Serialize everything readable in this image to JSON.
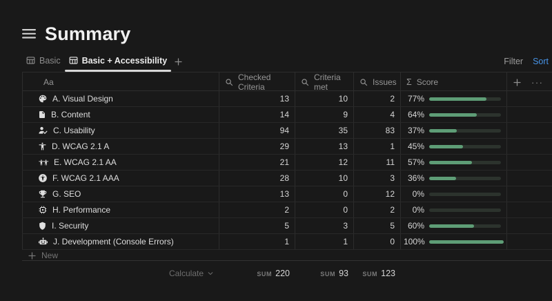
{
  "page": {
    "title": "Summary"
  },
  "toolbar": {
    "filter_label": "Filter",
    "sort_label": "Sort",
    "sort_color": "#4793e6"
  },
  "tabs": [
    {
      "label": "Basic",
      "active": false,
      "icon": "table-view"
    },
    {
      "label": "Basic + Accessibility",
      "active": true,
      "icon": "table-view"
    }
  ],
  "table": {
    "columns": [
      {
        "key": "name",
        "label": "Aa",
        "icon": "aa"
      },
      {
        "key": "checked",
        "label": "Checked Criteria",
        "icon": "magnifier"
      },
      {
        "key": "met",
        "label": "Criteria met",
        "icon": "magnifier"
      },
      {
        "key": "issues",
        "label": "Issues",
        "icon": "magnifier"
      },
      {
        "key": "score",
        "label": "Score",
        "icon": "sigma"
      }
    ],
    "rows": [
      {
        "icon": "palette",
        "name": "A. Visual Design",
        "checked": "13",
        "met": "10",
        "issues": "2",
        "score": "77%",
        "score_pct": 77
      },
      {
        "icon": "document",
        "name": "B. Content",
        "checked": "14",
        "met": "9",
        "issues": "4",
        "score": "64%",
        "score_pct": 64
      },
      {
        "icon": "user-check",
        "name": "C. Usability",
        "checked": "94",
        "met": "35",
        "issues": "83",
        "score": "37%",
        "score_pct": 37
      },
      {
        "icon": "person",
        "name": "D. WCAG 2.1 A",
        "checked": "29",
        "met": "13",
        "issues": "1",
        "score": "45%",
        "score_pct": 45
      },
      {
        "icon": "two-people",
        "name": "E. WCAG 2.1 AA",
        "checked": "21",
        "met": "12",
        "issues": "11",
        "score": "57%",
        "score_pct": 57
      },
      {
        "icon": "accessibility",
        "name": "F. WCAG 2.1 AAA",
        "checked": "28",
        "met": "10",
        "issues": "3",
        "score": "36%",
        "score_pct": 36
      },
      {
        "icon": "trophy",
        "name": "G. SEO",
        "checked": "13",
        "met": "0",
        "issues": "12",
        "score": "0%",
        "score_pct": 0
      },
      {
        "icon": "chip",
        "name": "H. Performance",
        "checked": "2",
        "met": "0",
        "issues": "2",
        "score": "0%",
        "score_pct": 0
      },
      {
        "icon": "shield",
        "name": "I. Security",
        "checked": "5",
        "met": "3",
        "issues": "5",
        "score": "60%",
        "score_pct": 60
      },
      {
        "icon": "robot",
        "name": "J. Development (Console Errors)",
        "checked": "1",
        "met": "1",
        "issues": "0",
        "score": "100%",
        "score_pct": 100
      }
    ],
    "new_row_label": "New",
    "footer": {
      "calculate_label": "Calculate",
      "sums": [
        {
          "label": "SUM",
          "value": "220"
        },
        {
          "label": "SUM",
          "value": "93"
        },
        {
          "label": "SUM",
          "value": "123"
        }
      ]
    },
    "progress": {
      "fill": "#5e9d76",
      "track": "#2c332d"
    }
  }
}
